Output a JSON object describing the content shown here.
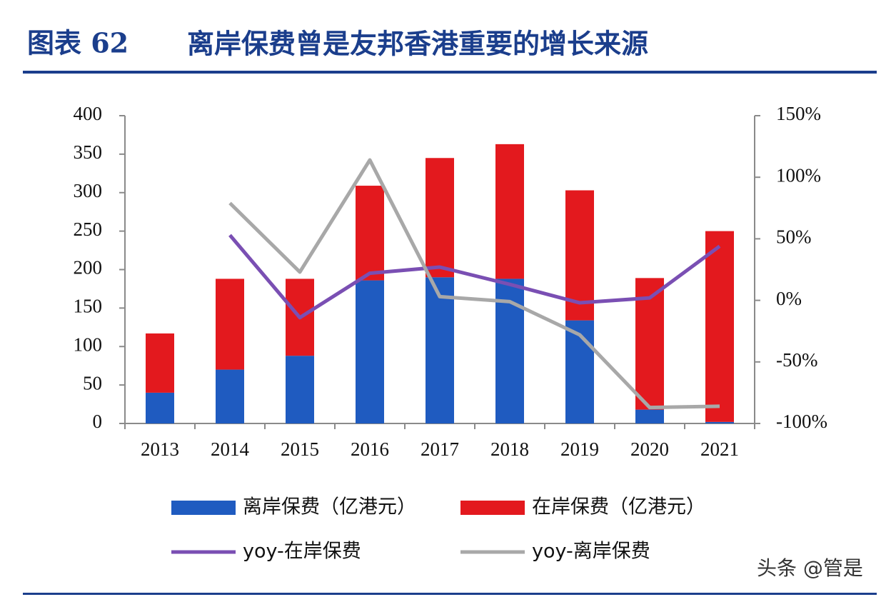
{
  "chart_data": {
    "type": "bar",
    "title_label": "图表 62",
    "title": "离岸保费曾是友邦香港重要的增长来源",
    "watermark": "头条 @管是",
    "categories": [
      "2013",
      "2014",
      "2015",
      "2016",
      "2017",
      "2018",
      "2019",
      "2020",
      "2021"
    ],
    "stacked": true,
    "series": [
      {
        "name": "离岸保费（亿港元）",
        "type": "bar",
        "color": "#1f5bc0",
        "values": [
          40,
          70,
          88,
          186,
          190,
          188,
          134,
          18,
          2
        ]
      },
      {
        "name": "在岸保费（亿港元）",
        "type": "bar",
        "color": "#e3191e",
        "values": [
          77,
          118,
          100,
          123,
          155,
          175,
          169,
          171,
          248
        ]
      },
      {
        "name": "yoy-在岸保费",
        "type": "line",
        "axis": "y2",
        "color": "#7a4fb3",
        "values": [
          null,
          53,
          -14,
          22,
          27,
          13,
          -2,
          2,
          44
        ]
      },
      {
        "name": "yoy-离岸保费",
        "type": "line",
        "axis": "y2",
        "color": "#a8a8a8",
        "values": [
          null,
          79,
          23,
          114,
          3,
          -1,
          -28,
          -87,
          -86
        ]
      }
    ],
    "ylim": [
      0,
      400
    ],
    "yticks": [
      0,
      50,
      100,
      150,
      200,
      250,
      300,
      350,
      400
    ],
    "y2lim": [
      -100,
      150
    ],
    "y2ticks": [
      {
        "value": -100,
        "label": "-100%"
      },
      {
        "value": -50,
        "label": "-50%"
      },
      {
        "value": 0,
        "label": "0%"
      },
      {
        "value": 50,
        "label": "50%"
      },
      {
        "value": 100,
        "label": "100%"
      },
      {
        "value": 150,
        "label": "150%"
      }
    ],
    "grid": false
  }
}
